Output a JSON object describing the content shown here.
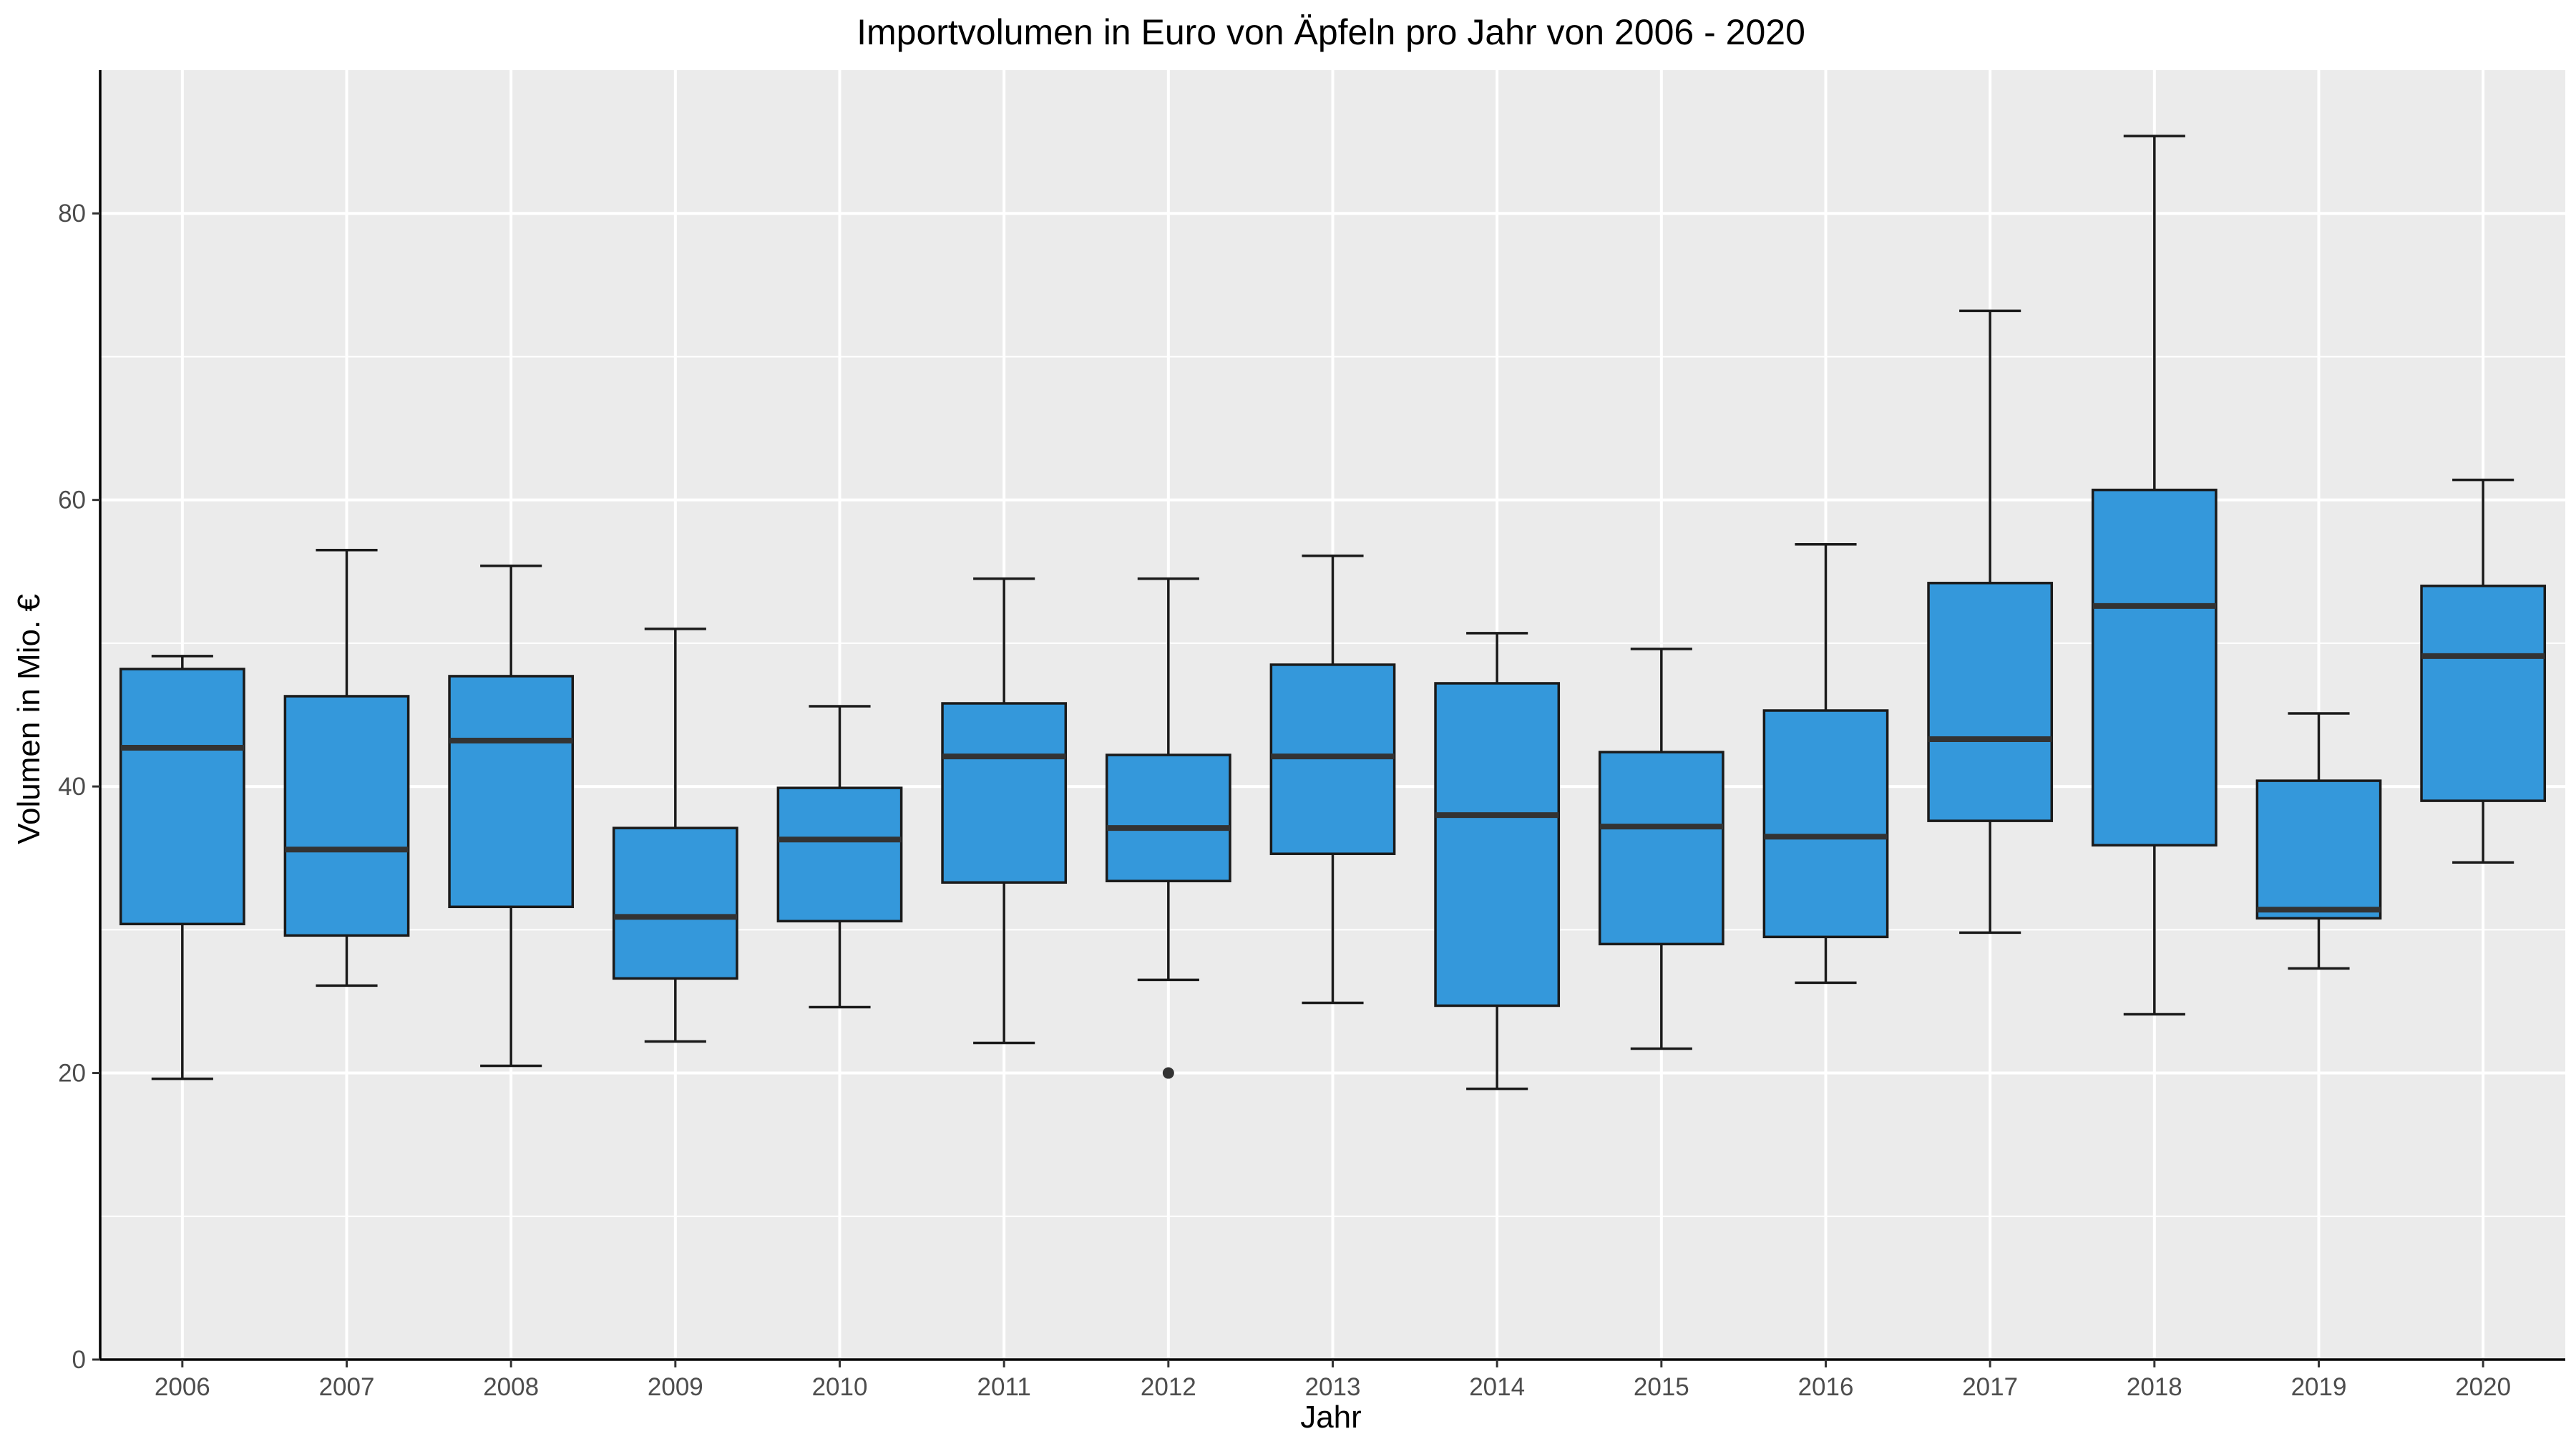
{
  "chart_data": {
    "type": "boxplot",
    "title": "Importvolumen in Euro von Äpfeln pro Jahr von 2006 - 2020",
    "xlabel": "Jahr",
    "ylabel": "Volumen in Mio. €",
    "ylim": [
      0,
      90
    ],
    "yticks": [
      0,
      20,
      40,
      60,
      80
    ],
    "grid": true,
    "legend": "none",
    "colors": {
      "box_fill": "#3498db",
      "box_stroke": "#1a1a1a",
      "panel": "#ebebeb",
      "grid": "#ffffff"
    },
    "categories": [
      "2006",
      "2007",
      "2008",
      "2009",
      "2010",
      "2011",
      "2012",
      "2013",
      "2014",
      "2015",
      "2016",
      "2017",
      "2018",
      "2019",
      "2020"
    ],
    "boxes": [
      {
        "x": "2006",
        "min": 19.6,
        "q1": 30.4,
        "median": 42.7,
        "q3": 48.2,
        "max": 49.1,
        "outliers": []
      },
      {
        "x": "2007",
        "min": 26.1,
        "q1": 29.6,
        "median": 35.6,
        "q3": 46.3,
        "max": 56.5,
        "outliers": []
      },
      {
        "x": "2008",
        "min": 20.5,
        "q1": 31.6,
        "median": 43.2,
        "q3": 47.7,
        "max": 55.4,
        "outliers": []
      },
      {
        "x": "2009",
        "min": 22.2,
        "q1": 26.6,
        "median": 30.9,
        "q3": 37.1,
        "max": 51.0,
        "outliers": []
      },
      {
        "x": "2010",
        "min": 24.6,
        "q1": 30.6,
        "median": 36.3,
        "q3": 39.9,
        "max": 45.6,
        "outliers": []
      },
      {
        "x": "2011",
        "min": 22.1,
        "q1": 33.3,
        "median": 42.1,
        "q3": 45.8,
        "max": 54.5,
        "outliers": []
      },
      {
        "x": "2012",
        "min": 26.5,
        "q1": 33.4,
        "median": 37.1,
        "q3": 42.2,
        "max": 54.5,
        "outliers": [
          20.0
        ]
      },
      {
        "x": "2013",
        "min": 24.9,
        "q1": 35.3,
        "median": 42.1,
        "q3": 48.5,
        "max": 56.1,
        "outliers": []
      },
      {
        "x": "2014",
        "min": 18.9,
        "q1": 24.7,
        "median": 38.0,
        "q3": 47.2,
        "max": 50.7,
        "outliers": []
      },
      {
        "x": "2015",
        "min": 21.7,
        "q1": 29.0,
        "median": 37.2,
        "q3": 42.4,
        "max": 49.6,
        "outliers": []
      },
      {
        "x": "2016",
        "min": 26.3,
        "q1": 29.5,
        "median": 36.5,
        "q3": 45.3,
        "max": 56.9,
        "outliers": []
      },
      {
        "x": "2017",
        "min": 29.8,
        "q1": 37.6,
        "median": 43.3,
        "q3": 54.2,
        "max": 73.2,
        "outliers": []
      },
      {
        "x": "2018",
        "min": 24.1,
        "q1": 35.9,
        "median": 52.6,
        "q3": 60.7,
        "max": 85.4,
        "outliers": []
      },
      {
        "x": "2019",
        "min": 27.3,
        "q1": 30.8,
        "median": 31.4,
        "q3": 40.4,
        "max": 45.1,
        "outliers": []
      },
      {
        "x": "2020",
        "min": 34.7,
        "q1": 39.0,
        "median": 49.1,
        "q3": 54.0,
        "max": 61.4,
        "outliers": []
      }
    ]
  }
}
